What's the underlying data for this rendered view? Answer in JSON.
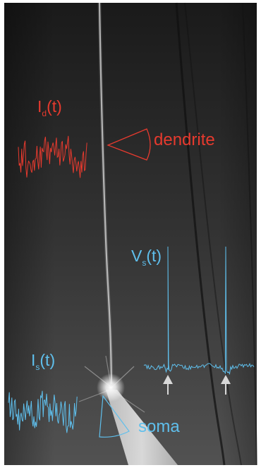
{
  "colors": {
    "dendrite_trace": "#e63a2e",
    "soma_trace": "#5fbfec",
    "arrow": "#d8d8d8",
    "background_dark": "#1c1c1c",
    "background_mid": "#4a4a4a"
  },
  "labels": {
    "dendrite_current_main": "I",
    "dendrite_current_sub": "d",
    "dendrite_current_arg": "(t)",
    "dendrite_name": "dendrite",
    "soma_current_main": "I",
    "soma_current_sub": "s",
    "soma_current_arg": "(t)",
    "soma_voltage_main": "V",
    "soma_voltage_sub": "s",
    "soma_voltage_arg": "(t)",
    "soma_name": "soma"
  }
}
